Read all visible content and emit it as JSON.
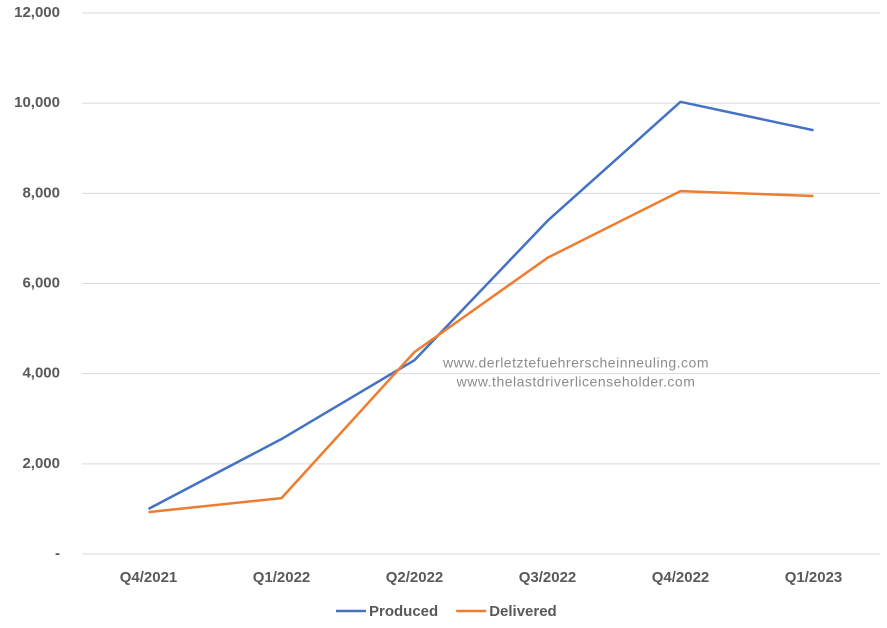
{
  "chart_data": {
    "type": "line",
    "categories": [
      "Q4/2021",
      "Q1/2022",
      "Q2/2022",
      "Q3/2022",
      "Q4/2022",
      "Q1/2023"
    ],
    "series": [
      {
        "name": "Produced",
        "color": "#4472c4",
        "values": [
          1000,
          2550,
          4300,
          7390,
          10030,
          9400
        ]
      },
      {
        "name": "Delivered",
        "color": "#ed7d31",
        "values": [
          930,
          1240,
          4480,
          6570,
          8050,
          7940
        ]
      }
    ],
    "ylim": [
      0,
      12000
    ],
    "yticks": [
      {
        "value": 0,
        "label": "-"
      },
      {
        "value": 2000,
        "label": "2,000"
      },
      {
        "value": 4000,
        "label": "4,000"
      },
      {
        "value": 6000,
        "label": "6,000"
      },
      {
        "value": 8000,
        "label": "8,000"
      },
      {
        "value": 10000,
        "label": "10,000"
      },
      {
        "value": 12000,
        "label": "12,000"
      }
    ],
    "grid": true,
    "legend": "bottom",
    "annotations": [
      "www.derletztefuehrerscheinneuling.com",
      "www.thelastdriverlicenseholder.com"
    ]
  }
}
